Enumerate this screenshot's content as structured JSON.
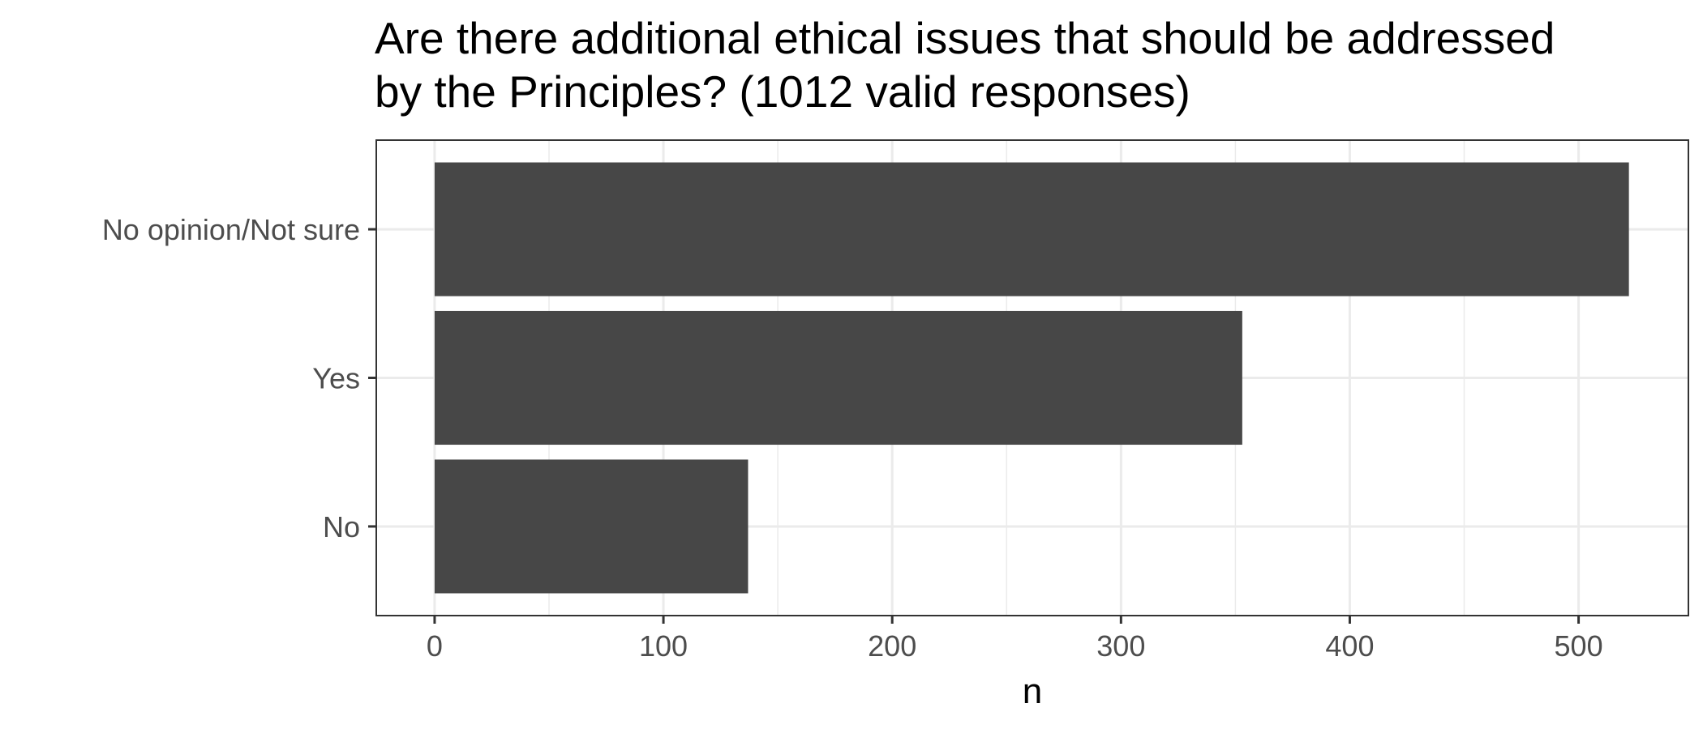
{
  "chart_data": {
    "type": "bar",
    "orientation": "horizontal",
    "title": [
      "Are there additional ethical issues that should be addressed",
      "by the Principles? (1012 valid responses)"
    ],
    "xlabel": "n",
    "ylabel": "",
    "categories": [
      "No opinion/Not sure",
      "Yes",
      "No"
    ],
    "values": [
      522,
      353,
      137
    ],
    "xlim": [
      -25.5,
      548
    ],
    "xticks": [
      0,
      100,
      200,
      300,
      400,
      500
    ],
    "grid": true,
    "legend": "none",
    "bar_color": "#474747",
    "grid_color": "#ebebeb",
    "panel_border_color": "#333333"
  }
}
